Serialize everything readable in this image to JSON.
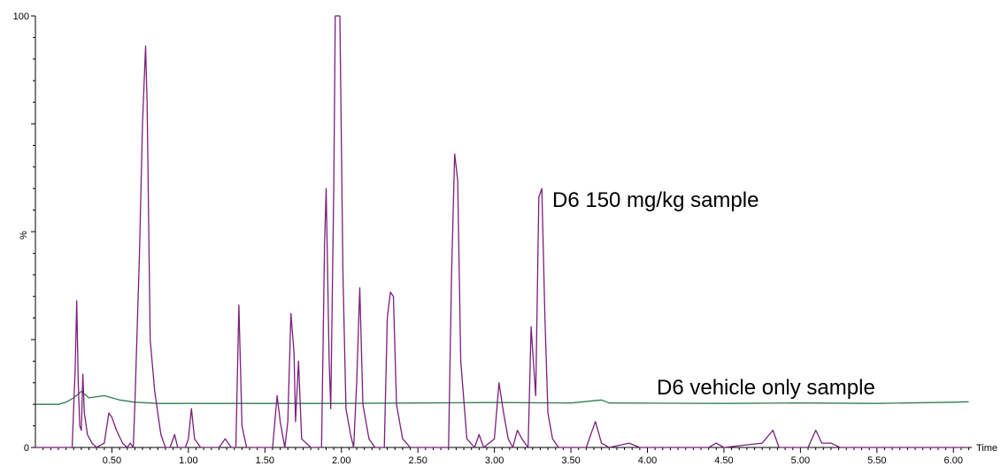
{
  "chart_data": {
    "type": "line",
    "title": "",
    "xlabel": "Time",
    "ylabel": "%",
    "xlim": [
      0.0,
      6.12
    ],
    "ylim": [
      0,
      100
    ],
    "x_ticks": [
      0.5,
      1.0,
      1.5,
      2.0,
      2.5,
      3.0,
      3.5,
      4.0,
      4.5,
      5.0,
      5.5,
      6.0
    ],
    "x_tick_labels": [
      "0.50",
      "1.00",
      "1.50",
      "2.00",
      "2.50",
      "3.00",
      "3.50",
      "4.00",
      "4.50",
      "5.00",
      "5.50",
      "6.00"
    ],
    "y_tick_labels": [
      {
        "value": 0,
        "label": "0"
      },
      {
        "value": 100,
        "label": "100"
      }
    ],
    "grid": false,
    "colors": {
      "treated": "#7a1f7a",
      "vehicle": "#2e7d4a"
    },
    "series": [
      {
        "name": "D6 150 mg/kg sample",
        "points": [
          [
            0.0,
            0
          ],
          [
            0.12,
            0
          ],
          [
            0.24,
            0
          ],
          [
            0.26,
            18
          ],
          [
            0.27,
            34
          ],
          [
            0.28,
            15
          ],
          [
            0.29,
            5
          ],
          [
            0.3,
            4
          ],
          [
            0.31,
            17
          ],
          [
            0.32,
            8
          ],
          [
            0.34,
            3
          ],
          [
            0.37,
            1
          ],
          [
            0.4,
            0
          ],
          [
            0.45,
            1
          ],
          [
            0.48,
            8
          ],
          [
            0.5,
            7
          ],
          [
            0.53,
            4
          ],
          [
            0.57,
            1
          ],
          [
            0.6,
            0
          ],
          [
            0.62,
            1
          ],
          [
            0.64,
            0
          ],
          [
            0.65,
            10
          ],
          [
            0.68,
            45
          ],
          [
            0.7,
            75
          ],
          [
            0.72,
            93
          ],
          [
            0.73,
            80
          ],
          [
            0.75,
            25
          ],
          [
            0.78,
            13
          ],
          [
            0.82,
            3
          ],
          [
            0.85,
            0
          ],
          [
            0.88,
            0
          ],
          [
            0.91,
            3
          ],
          [
            0.93,
            0
          ],
          [
            0.98,
            0
          ],
          [
            1.0,
            2
          ],
          [
            1.02,
            9
          ],
          [
            1.04,
            2
          ],
          [
            1.08,
            0
          ],
          [
            1.2,
            0
          ],
          [
            1.24,
            2
          ],
          [
            1.28,
            0
          ],
          [
            1.31,
            0
          ],
          [
            1.33,
            33
          ],
          [
            1.35,
            5
          ],
          [
            1.38,
            0
          ],
          [
            1.55,
            0
          ],
          [
            1.58,
            12
          ],
          [
            1.6,
            6
          ],
          [
            1.63,
            0
          ],
          [
            1.65,
            6
          ],
          [
            1.67,
            31
          ],
          [
            1.69,
            22
          ],
          [
            1.7,
            6
          ],
          [
            1.72,
            20
          ],
          [
            1.74,
            2
          ],
          [
            1.8,
            0
          ],
          [
            1.87,
            0
          ],
          [
            1.89,
            47
          ],
          [
            1.9,
            60
          ],
          [
            1.92,
            20
          ],
          [
            1.93,
            9
          ],
          [
            1.95,
            60
          ],
          [
            1.96,
            100
          ],
          [
            1.98,
            100
          ],
          [
            1.99,
            100
          ],
          [
            2.01,
            40
          ],
          [
            2.03,
            9
          ],
          [
            2.06,
            3
          ],
          [
            2.08,
            0
          ],
          [
            2.1,
            15
          ],
          [
            2.12,
            37
          ],
          [
            2.14,
            10
          ],
          [
            2.18,
            2
          ],
          [
            2.22,
            0
          ],
          [
            2.28,
            0
          ],
          [
            2.3,
            30
          ],
          [
            2.32,
            36
          ],
          [
            2.34,
            35
          ],
          [
            2.36,
            10
          ],
          [
            2.4,
            2
          ],
          [
            2.45,
            0
          ],
          [
            2.7,
            0
          ],
          [
            2.72,
            40
          ],
          [
            2.74,
            68
          ],
          [
            2.76,
            62
          ],
          [
            2.78,
            20
          ],
          [
            2.82,
            2
          ],
          [
            2.87,
            0
          ],
          [
            2.9,
            3
          ],
          [
            2.93,
            0
          ],
          [
            3.0,
            2
          ],
          [
            3.03,
            15
          ],
          [
            3.06,
            8
          ],
          [
            3.09,
            2
          ],
          [
            3.12,
            0
          ],
          [
            3.15,
            4
          ],
          [
            3.18,
            2
          ],
          [
            3.22,
            0
          ],
          [
            3.24,
            28
          ],
          [
            3.26,
            17
          ],
          [
            3.27,
            12
          ],
          [
            3.29,
            58
          ],
          [
            3.31,
            60
          ],
          [
            3.33,
            30
          ],
          [
            3.35,
            8
          ],
          [
            3.38,
            2
          ],
          [
            3.42,
            0
          ],
          [
            3.6,
            0
          ],
          [
            3.66,
            6
          ],
          [
            3.7,
            1
          ],
          [
            3.75,
            0
          ],
          [
            3.88,
            1
          ],
          [
            3.95,
            0
          ],
          [
            4.4,
            0
          ],
          [
            4.45,
            1
          ],
          [
            4.5,
            0
          ],
          [
            4.75,
            1
          ],
          [
            4.82,
            4
          ],
          [
            4.86,
            0
          ],
          [
            5.05,
            0
          ],
          [
            5.1,
            4
          ],
          [
            5.14,
            1
          ],
          [
            5.2,
            1
          ],
          [
            5.26,
            0
          ],
          [
            6.1,
            0
          ]
        ]
      },
      {
        "name": "D6 vehicle only sample",
        "points": [
          [
            0.0,
            10
          ],
          [
            0.15,
            10
          ],
          [
            0.2,
            10.5
          ],
          [
            0.25,
            11.5
          ],
          [
            0.3,
            13
          ],
          [
            0.35,
            11.5
          ],
          [
            0.45,
            12
          ],
          [
            0.55,
            11
          ],
          [
            0.65,
            10.5
          ],
          [
            0.8,
            10.2
          ],
          [
            1.0,
            10.2
          ],
          [
            1.5,
            10.2
          ],
          [
            2.0,
            10.2
          ],
          [
            2.5,
            10.3
          ],
          [
            3.0,
            10.4
          ],
          [
            3.5,
            10.3
          ],
          [
            3.7,
            11
          ],
          [
            3.75,
            10.3
          ],
          [
            4.5,
            10.2
          ],
          [
            5.0,
            10.3
          ],
          [
            5.5,
            10.2
          ],
          [
            6.0,
            10.5
          ],
          [
            6.1,
            10.6
          ]
        ]
      }
    ]
  }
}
